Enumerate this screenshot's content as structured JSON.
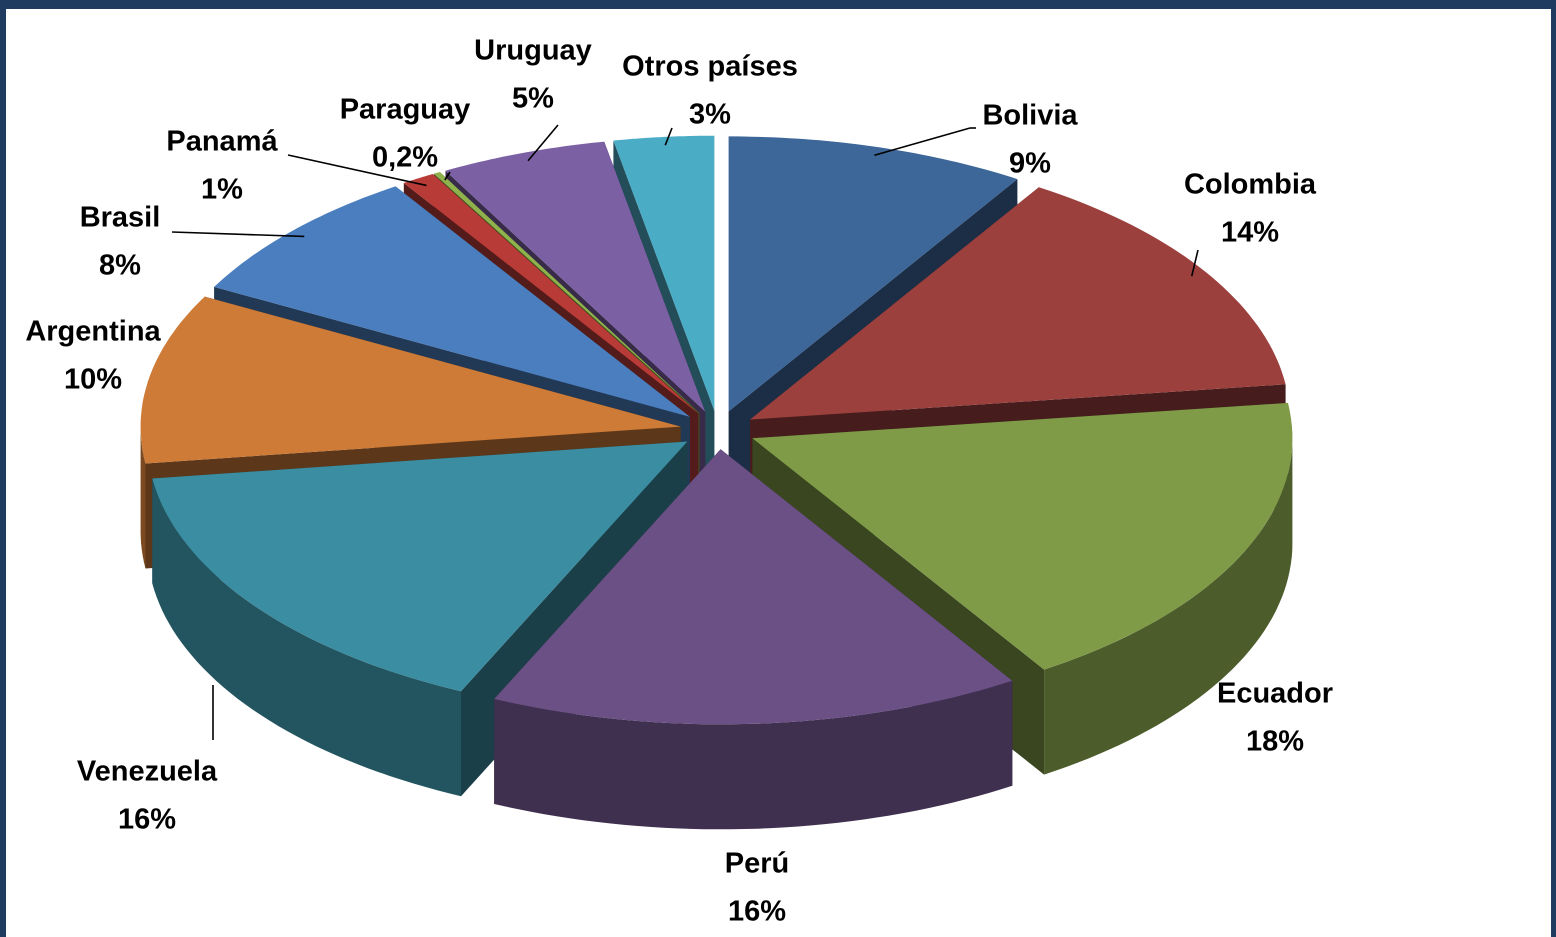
{
  "chart_data": {
    "type": "pie3d",
    "categories": [
      "Bolivia",
      "Colombia",
      "Ecuador",
      "Perú",
      "Venezuela",
      "Argentina",
      "Brasil",
      "Panamá",
      "Paraguay",
      "Uruguay",
      "Otros países"
    ],
    "values": [
      9,
      14,
      18,
      16,
      16,
      10,
      8,
      1,
      0.2,
      5,
      3
    ],
    "value_labels": [
      "9%",
      "14%",
      "18%",
      "16%",
      "16%",
      "10%",
      "8%",
      "1%",
      "0,2%",
      "5%",
      "3%"
    ],
    "colors": [
      "#3d6699",
      "#9c403e",
      "#7f9b48",
      "#6a5084",
      "#3b8da1",
      "#cd7b37",
      "#4b7ebe",
      "#b93b37",
      "#8fb24c",
      "#7c60a4",
      "#4bacc6"
    ]
  }
}
